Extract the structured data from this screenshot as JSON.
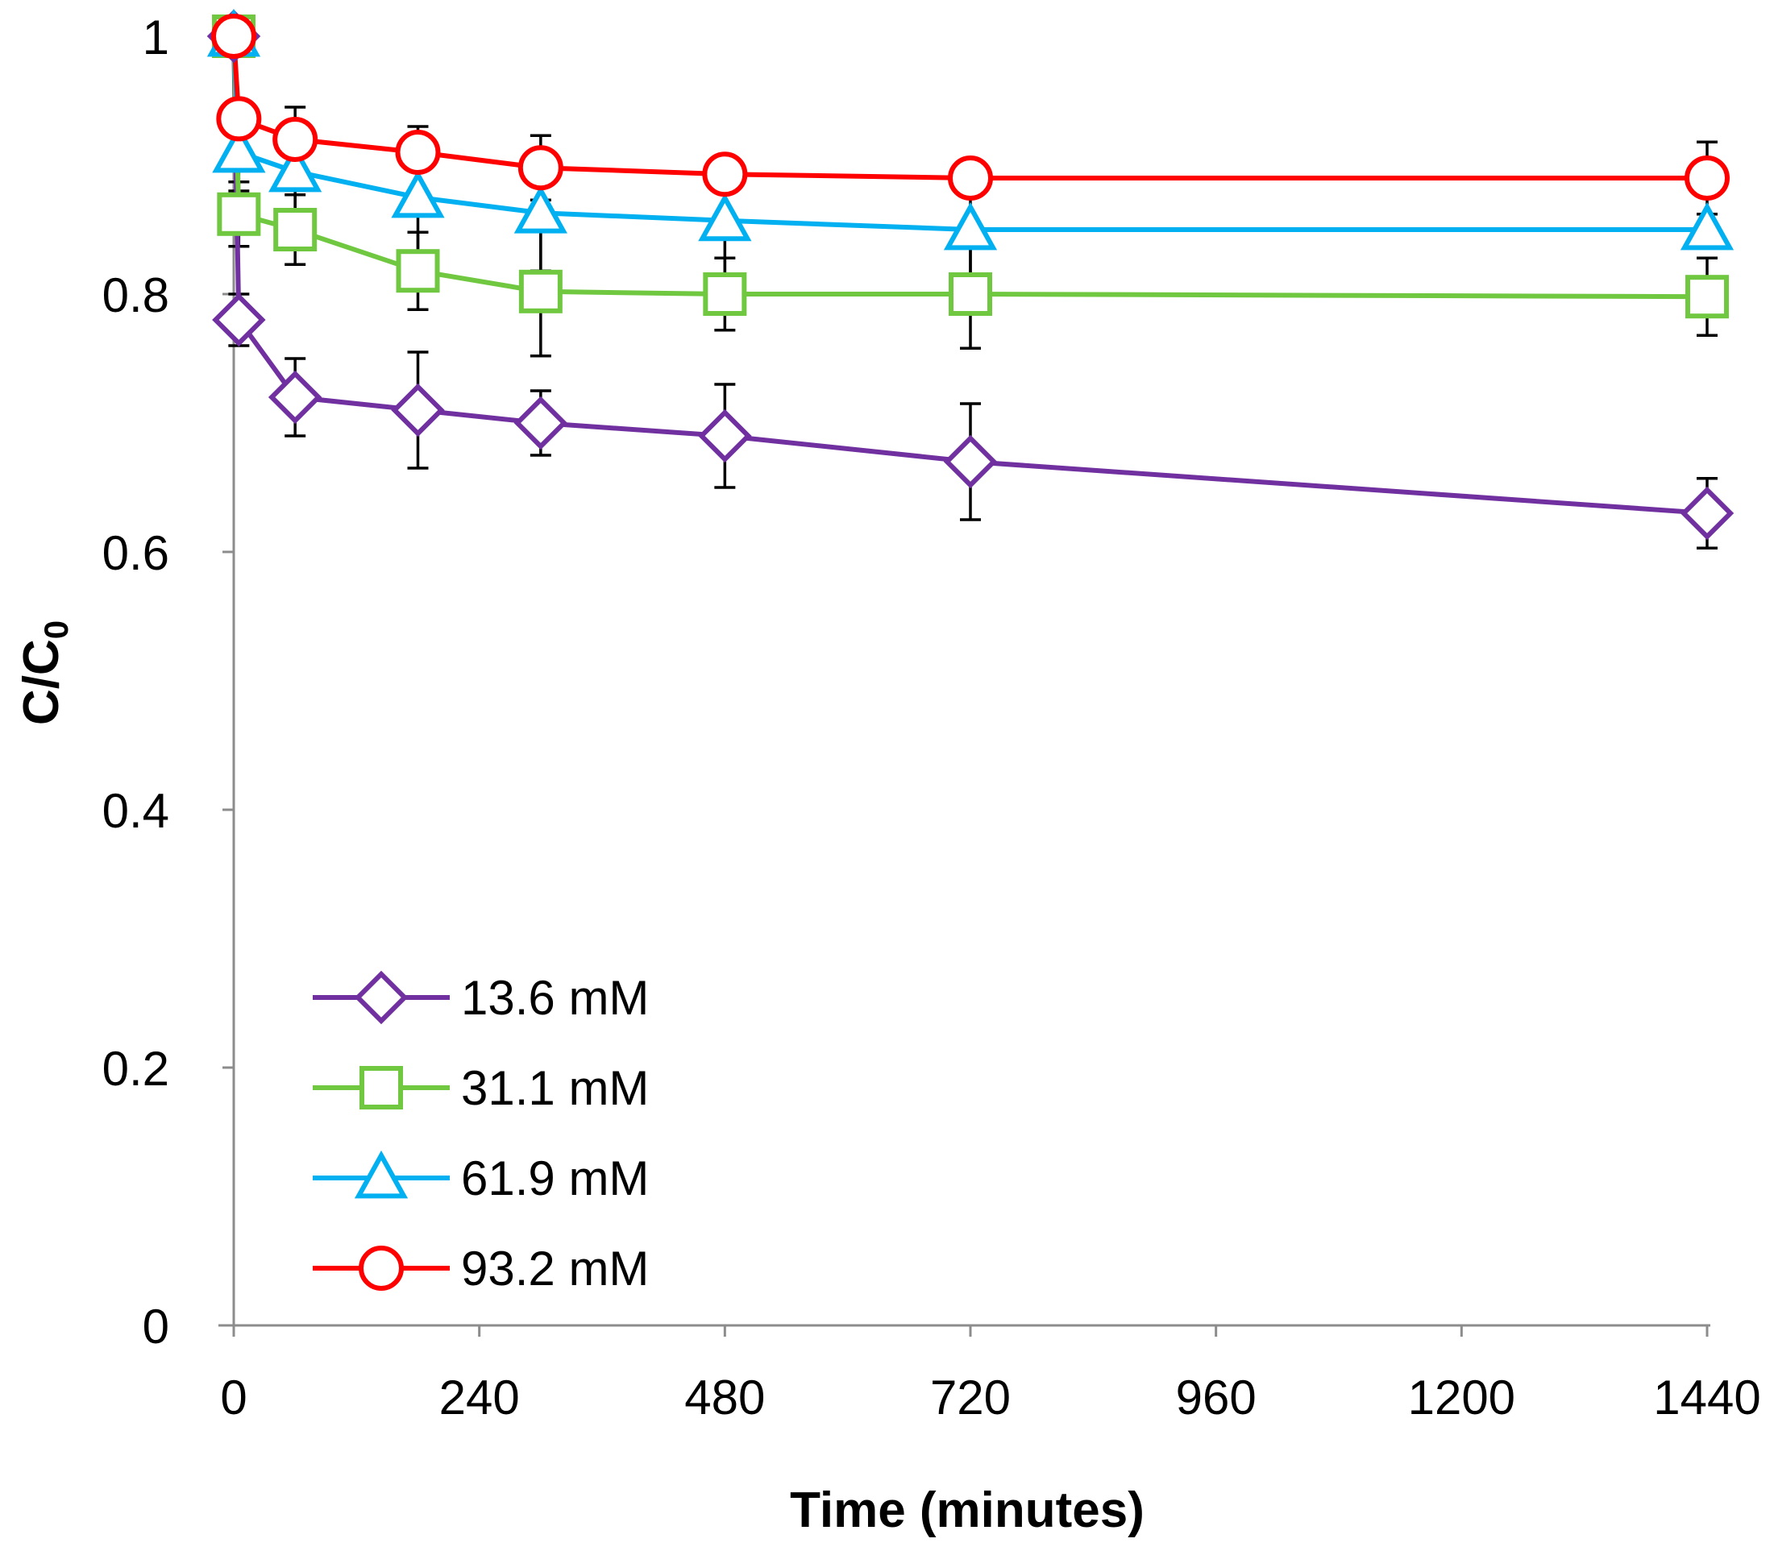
{
  "chart_data": {
    "type": "line",
    "xlabel": "Time (minutes)",
    "ylabel": {
      "main": "C/C",
      "subscript": "0"
    },
    "xlim": [
      -15,
      1450
    ],
    "ylim": [
      0,
      1
    ],
    "x_ticks": [
      0,
      240,
      480,
      720,
      960,
      1200,
      1440
    ],
    "x_tick_labels": [
      "0",
      "240",
      "480",
      "720",
      "960",
      "1200",
      "1440"
    ],
    "y_ticks": [
      0,
      0.2,
      0.4,
      0.6,
      0.8,
      1
    ],
    "y_tick_labels": [
      "0",
      "0.2",
      "0.4",
      "0.6",
      "0.8",
      "1"
    ],
    "grid": false,
    "legend_position": "bottom-left",
    "series": [
      {
        "name": "13.6 mM",
        "color": "#7030A0",
        "marker": "diamond",
        "x": [
          0,
          5,
          60,
          180,
          300,
          480,
          720,
          1440
        ],
        "y": [
          1.0,
          0.78,
          0.72,
          0.71,
          0.7,
          0.69,
          0.67,
          0.63
        ],
        "error": [
          0.0,
          0.02,
          0.03,
          0.045,
          0.025,
          0.04,
          0.045,
          0.027
        ]
      },
      {
        "name": "31.1 mM",
        "color": "#70C840",
        "marker": "square",
        "x": [
          0,
          5,
          60,
          180,
          300,
          480,
          720,
          1440
        ],
        "y": [
          1.0,
          0.862,
          0.85,
          0.818,
          0.802,
          0.8,
          0.8,
          0.798
        ],
        "error": [
          0.0,
          0.025,
          0.027,
          0.03,
          0.05,
          0.028,
          0.042,
          0.03
        ]
      },
      {
        "name": "61.9 mM",
        "color": "#00B0F0",
        "marker": "triangle",
        "x": [
          0,
          5,
          60,
          180,
          300,
          480,
          720,
          1440
        ],
        "y": [
          1.0,
          0.91,
          0.895,
          0.875,
          0.863,
          0.857,
          0.85,
          0.85
        ],
        "error": [
          0.0,
          0.03,
          0.05,
          0.055,
          0.045,
          0.05,
          0.04,
          0.012
        ]
      },
      {
        "name": "93.2 mM",
        "color": "#FF0000",
        "marker": "circle",
        "x": [
          0,
          5,
          60,
          180,
          300,
          480,
          720,
          1440
        ],
        "y": [
          1.0,
          0.936,
          0.92,
          0.91,
          0.898,
          0.893,
          0.89,
          0.89
        ],
        "error": [
          0.0,
          0.0,
          0.0,
          0.0,
          0.025,
          0.0,
          0.0,
          0.028
        ]
      }
    ]
  }
}
